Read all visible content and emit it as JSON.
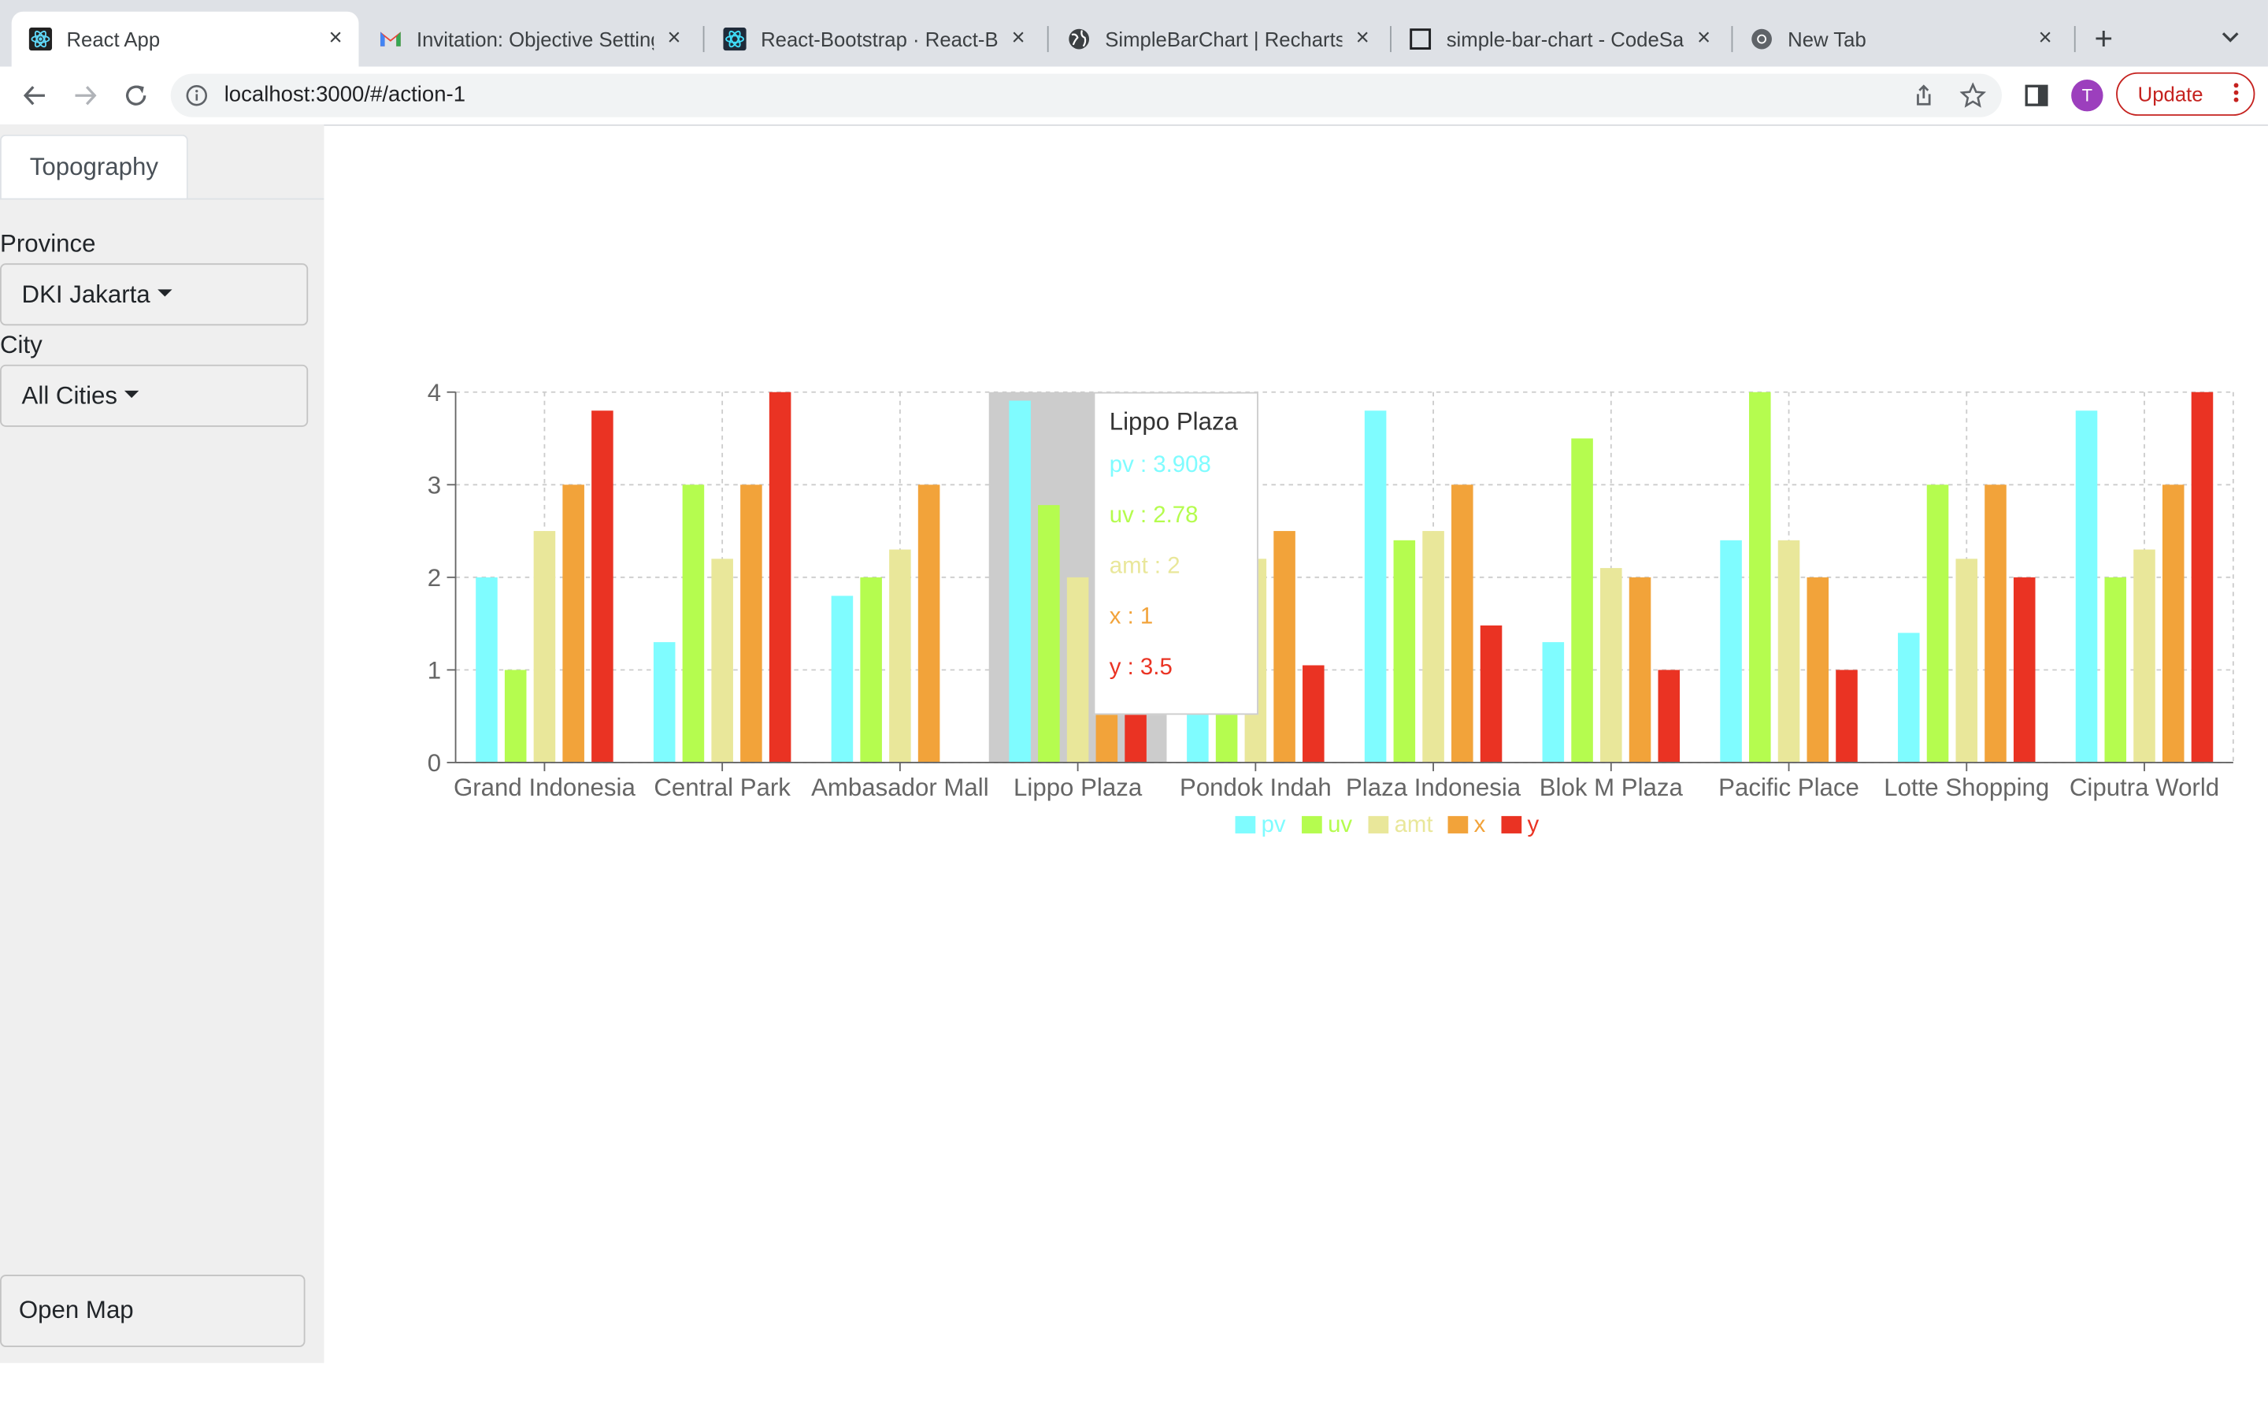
{
  "browser": {
    "tabs": [
      {
        "title": "React App",
        "icon": "react-icon",
        "active": true
      },
      {
        "title": "Invitation: Objective Setting",
        "icon": "gmail-icon"
      },
      {
        "title": "React-Bootstrap · React-Bo",
        "icon": "react-bootstrap-icon"
      },
      {
        "title": "SimpleBarChart | Recharts",
        "icon": "globe-icon"
      },
      {
        "title": "simple-bar-chart - CodeSa",
        "icon": "codesandbox-icon"
      },
      {
        "title": "New Tab",
        "icon": "chrome-icon"
      }
    ],
    "url": "localhost:3000/#/action-1",
    "profile_initial": "T",
    "update_label": "Update",
    "close_glyph": "×",
    "new_tab_glyph": "+"
  },
  "sidebar": {
    "tab_label": "Topography",
    "province_label": "Province",
    "province_value": "DKI Jakarta",
    "city_label": "City",
    "city_value": "All Cities",
    "open_map_label": "Open Map"
  },
  "tooltip": {
    "title": "Lippo Plaza",
    "rows": [
      {
        "text": "pv : 3.908",
        "color": "#7ffcff"
      },
      {
        "text": "uv : 2.78",
        "color": "#b5fc4f"
      },
      {
        "text": "amt : 2",
        "color": "#e9e79a"
      },
      {
        "text": "x : 1",
        "color": "#f2a33a"
      },
      {
        "text": "y : 3.5",
        "color": "#ea3323"
      }
    ]
  },
  "chart_data": {
    "type": "bar",
    "categories": [
      "Grand Indonesia",
      "Central Park",
      "Ambasador Mall",
      "Lippo Plaza",
      "Pondok Indah",
      "Plaza Indonesia",
      "Blok M Plaza",
      "Pacific Place",
      "Lotte Shopping",
      "Ciputra World"
    ],
    "series": [
      {
        "name": "pv",
        "color": "#7ffcff",
        "values": [
          2,
          1.3,
          1.8,
          3.908,
          1.5,
          3.8,
          1.3,
          2.4,
          1.4,
          3.8
        ]
      },
      {
        "name": "uv",
        "color": "#b5fc4f",
        "values": [
          1,
          3,
          2,
          2.78,
          1.5,
          2.4,
          3.5,
          4,
          3,
          2
        ]
      },
      {
        "name": "amt",
        "color": "#e9e79a",
        "values": [
          2.5,
          2.2,
          2.3,
          2,
          2.2,
          2.5,
          2.1,
          2.4,
          2.2,
          2.3
        ]
      },
      {
        "name": "x",
        "color": "#f2a33a",
        "values": [
          3,
          3,
          3,
          1,
          2.5,
          3,
          2,
          2,
          3,
          3
        ]
      },
      {
        "name": "y",
        "color": "#ea3323",
        "values": [
          3.8,
          4,
          0,
          3.5,
          1.05,
          1.48,
          1,
          1,
          2,
          4
        ]
      }
    ],
    "yticks": [
      "0",
      "1",
      "2",
      "3",
      "4"
    ],
    "ylim": [
      0,
      4
    ],
    "highlighted_category": "Lippo Plaza",
    "grid": true,
    "legend": "bottom-center"
  }
}
